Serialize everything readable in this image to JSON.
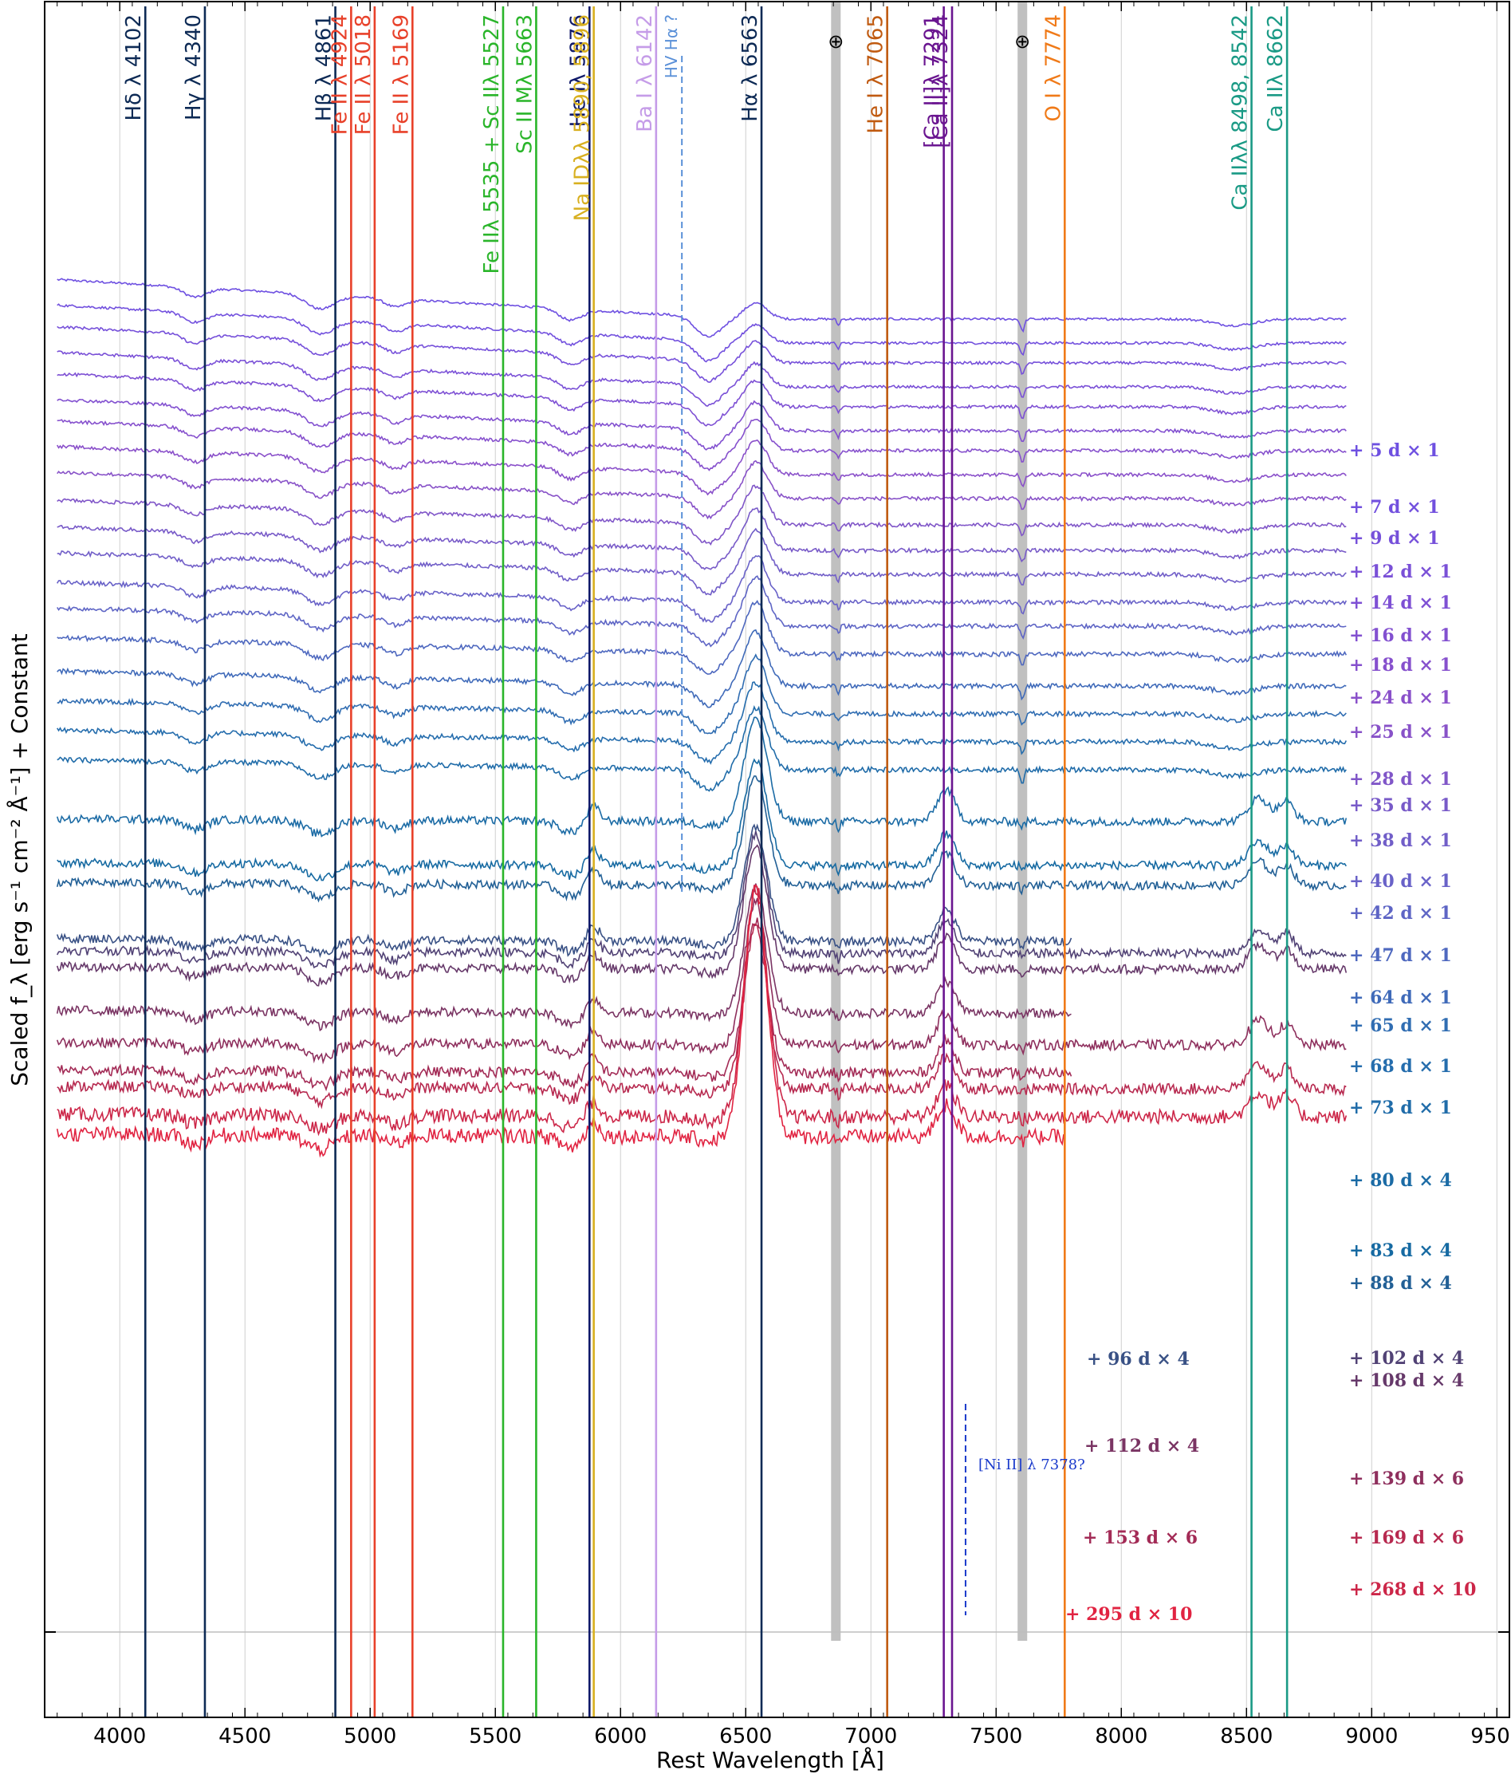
{
  "chart_data": {
    "type": "line",
    "title": "",
    "xlabel": "Rest Wavelength [Å]",
    "ylabel": "Scaled f_λ [erg s⁻¹ cm⁻² Å⁻¹] + Constant",
    "xlim": [
      3700,
      9550
    ],
    "x_ticks": [
      "4000",
      "4500",
      "5000",
      "5500",
      "6000",
      "6500",
      "7000",
      "7500",
      "8000",
      "8500",
      "9000",
      "9500"
    ],
    "x_tick_values": [
      4000,
      4500,
      5000,
      5500,
      6000,
      6500,
      7000,
      7500,
      8000,
      8500,
      9000,
      9500
    ],
    "grid": true,
    "wavelength_range": [
      3750,
      8900
    ],
    "spectral_lines": [
      {
        "label": "Hδ λ 4102",
        "wavelength": 4102,
        "color": "#0d2a55",
        "style": "solid"
      },
      {
        "label": "Hγ λ 4340",
        "wavelength": 4340,
        "color": "#0d2a55",
        "style": "solid"
      },
      {
        "label": "Hβ λ 4861",
        "wavelength": 4861,
        "color": "#0d2a55",
        "style": "solid"
      },
      {
        "label": "Fe II λ 4924",
        "wavelength": 4924,
        "color": "#e8412a",
        "style": "solid"
      },
      {
        "label": "Fe II λ 5018",
        "wavelength": 5018,
        "color": "#e8412a",
        "style": "solid"
      },
      {
        "label": "Fe II λ 5169",
        "wavelength": 5169,
        "color": "#e8412a",
        "style": "solid"
      },
      {
        "label": "Fe IIλ 5535 + Sc IIλ 5527",
        "wavelength": 5531,
        "color": "#2ab52a",
        "style": "solid"
      },
      {
        "label": "Sc II Mλ 5663",
        "wavelength": 5663,
        "color": "#2ab52a",
        "style": "solid"
      },
      {
        "label": "He Iλ 5876",
        "wavelength": 5876,
        "color": "#101a6a",
        "style": "solid"
      },
      {
        "label": "Na IDλλ 5890, 5896",
        "wavelength": 5893,
        "color": "#d8b020",
        "style": "solid"
      },
      {
        "label": "Ba I λ 6142",
        "wavelength": 6142,
        "color": "#c59ce8",
        "style": "solid"
      },
      {
        "label": "HV Hα ?",
        "wavelength": 6245,
        "color": "#5a90d8",
        "style": "dashed"
      },
      {
        "label": "Hα λ 6563",
        "wavelength": 6563,
        "color": "#0d2a55",
        "style": "solid"
      },
      {
        "label": "He I λ 7065",
        "wavelength": 7065,
        "color": "#c05a10",
        "style": "solid"
      },
      {
        "label": "[Ca II]λ 7291",
        "wavelength": 7291,
        "color": "#6a1590",
        "style": "solid"
      },
      {
        "label": "[Ca II]λ 7324",
        "wavelength": 7324,
        "color": "#6a1590",
        "style": "solid"
      },
      {
        "label": "O I λ 7774",
        "wavelength": 7774,
        "color": "#f07a18",
        "style": "solid"
      },
      {
        "label": "Ca IIλλ 8498, 8542",
        "wavelength": 8520,
        "color": "#1a9a85",
        "style": "solid"
      },
      {
        "label": "Ca IIλ 8662",
        "wavelength": 8662,
        "color": "#1a9a85",
        "style": "solid"
      }
    ],
    "telluric_bands": [
      {
        "label": "⊕",
        "wavelength": 6860
      },
      {
        "label": "⊕",
        "wavelength": 7605
      }
    ],
    "annotations": [
      {
        "label": "[Ni II] λ 7378?",
        "wavelength": 7378,
        "color": "#1a3acb"
      }
    ],
    "series": [
      {
        "name": "+ 5 d × 1",
        "epoch": 5,
        "scale": 1
      },
      {
        "name": "+ 7 d × 1",
        "epoch": 7,
        "scale": 1
      },
      {
        "name": "+ 9 d × 1",
        "epoch": 9,
        "scale": 1
      },
      {
        "name": "+ 12 d × 1",
        "epoch": 12,
        "scale": 1
      },
      {
        "name": "+ 14 d × 1",
        "epoch": 14,
        "scale": 1
      },
      {
        "name": "+ 16 d × 1",
        "epoch": 16,
        "scale": 1
      },
      {
        "name": "+ 18 d × 1",
        "epoch": 18,
        "scale": 1
      },
      {
        "name": "+ 24 d × 1",
        "epoch": 24,
        "scale": 1
      },
      {
        "name": "+ 25 d × 1",
        "epoch": 25,
        "scale": 1
      },
      {
        "name": "+ 28 d × 1",
        "epoch": 28,
        "scale": 1
      },
      {
        "name": "+ 35 d × 1",
        "epoch": 35,
        "scale": 1
      },
      {
        "name": "+ 38 d × 1",
        "epoch": 38,
        "scale": 1
      },
      {
        "name": "+ 40 d × 1",
        "epoch": 40,
        "scale": 1
      },
      {
        "name": "+ 42 d × 1",
        "epoch": 42,
        "scale": 1
      },
      {
        "name": "+ 47 d × 1",
        "epoch": 47,
        "scale": 1
      },
      {
        "name": "+ 64 d × 1",
        "epoch": 64,
        "scale": 1
      },
      {
        "name": "+ 65 d × 1",
        "epoch": 65,
        "scale": 1
      },
      {
        "name": "+ 68 d × 1",
        "epoch": 68,
        "scale": 1
      },
      {
        "name": "+ 73 d × 1",
        "epoch": 73,
        "scale": 1
      },
      {
        "name": "+ 80 d × 4",
        "epoch": 80,
        "scale": 4
      },
      {
        "name": "+ 83 d × 4",
        "epoch": 83,
        "scale": 4
      },
      {
        "name": "+ 88 d × 4",
        "epoch": 88,
        "scale": 4
      },
      {
        "name": "+ 96 d × 4",
        "epoch": 96,
        "scale": 4
      },
      {
        "name": "+ 102 d × 4",
        "epoch": 102,
        "scale": 4
      },
      {
        "name": "+ 108 d × 4",
        "epoch": 108,
        "scale": 4
      },
      {
        "name": "+ 112 d × 4",
        "epoch": 112,
        "scale": 4
      },
      {
        "name": "+ 139 d × 6",
        "epoch": 139,
        "scale": 6
      },
      {
        "name": "+ 153 d × 6",
        "epoch": 153,
        "scale": 6
      },
      {
        "name": "+ 169 d × 6",
        "epoch": 169,
        "scale": 6
      },
      {
        "name": "+ 268 d × 10",
        "epoch": 268,
        "scale": 10
      },
      {
        "name": "+ 295 d × 10",
        "epoch": 295,
        "scale": 10
      }
    ]
  }
}
